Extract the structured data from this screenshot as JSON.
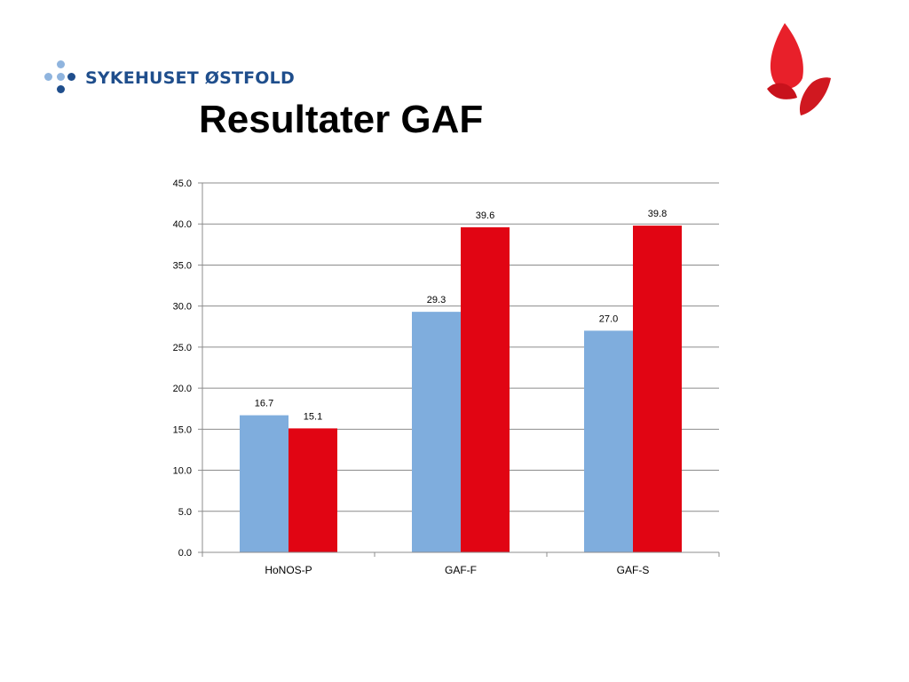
{
  "header": {
    "logo_text": "SYKEHUSET ØSTFOLD",
    "title": "Resultater GAF"
  },
  "colors": {
    "logo_blue": "#1f4e8c",
    "logo_dots_light": "#8fb4de",
    "series_1": "#7faddd",
    "series_2": "#e10513",
    "brand_mark": "#e8202a"
  },
  "icons": {
    "logo": "hospital-dots-icon",
    "brand": "red-flame-logo-icon"
  },
  "chart_data": {
    "type": "bar",
    "categories": [
      "HoNOS-P",
      "GAF-F",
      "GAF-S"
    ],
    "series": [
      {
        "values": [
          16.7,
          29.3,
          27.0
        ],
        "labels": [
          "16.7",
          "29.3",
          "27.0"
        ]
      },
      {
        "values": [
          15.1,
          39.6,
          39.8
        ],
        "labels": [
          "15.1",
          "39.6",
          "39.8"
        ]
      }
    ],
    "ylim": [
      0,
      45
    ],
    "yticks": [
      "0.0",
      "5.0",
      "10.0",
      "15.0",
      "20.0",
      "25.0",
      "30.0",
      "35.0",
      "40.0",
      "45.0"
    ],
    "ytick_step": 5,
    "grid": true,
    "legend": "none"
  }
}
